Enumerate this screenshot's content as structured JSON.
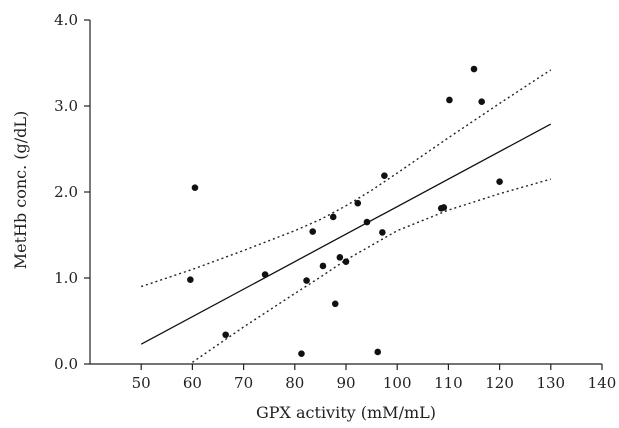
{
  "chart_data": {
    "type": "scatter",
    "xlabel": "GPX activity (mM/mL)",
    "ylabel": "MetHb conc. (g/dL)",
    "xlim": [
      40,
      140
    ],
    "ylim": [
      0.0,
      4.0
    ],
    "x_ticks": [
      50,
      60,
      70,
      80,
      90,
      100,
      110,
      120,
      130,
      140
    ],
    "x_tick_labels": [
      "50",
      "60",
      "70",
      "80",
      "90",
      "100",
      "110",
      "120",
      "130",
      "140"
    ],
    "y_ticks": [
      0.0,
      1.0,
      2.0,
      3.0,
      4.0
    ],
    "y_tick_labels": [
      "0.0",
      "1.0",
      "2.0",
      "3.0",
      "4.0"
    ],
    "grid": false,
    "points": [
      {
        "x": 59.6,
        "y": 0.98
      },
      {
        "x": 60.5,
        "y": 2.05
      },
      {
        "x": 66.5,
        "y": 0.34
      },
      {
        "x": 74.2,
        "y": 1.04
      },
      {
        "x": 81.3,
        "y": 0.12
      },
      {
        "x": 82.3,
        "y": 0.97
      },
      {
        "x": 83.5,
        "y": 1.54
      },
      {
        "x": 85.5,
        "y": 1.14
      },
      {
        "x": 87.5,
        "y": 1.71
      },
      {
        "x": 87.9,
        "y": 0.7
      },
      {
        "x": 88.8,
        "y": 1.24
      },
      {
        "x": 90.0,
        "y": 1.19
      },
      {
        "x": 92.3,
        "y": 1.87
      },
      {
        "x": 94.1,
        "y": 1.65
      },
      {
        "x": 96.2,
        "y": 0.14
      },
      {
        "x": 97.1,
        "y": 1.53
      },
      {
        "x": 97.5,
        "y": 2.19
      },
      {
        "x": 108.6,
        "y": 1.81
      },
      {
        "x": 109.1,
        "y": 1.82
      },
      {
        "x": 110.2,
        "y": 3.07
      },
      {
        "x": 115.0,
        "y": 3.43
      },
      {
        "x": 116.5,
        "y": 3.05
      },
      {
        "x": 120.0,
        "y": 2.12
      }
    ],
    "fit_line": {
      "x": [
        50,
        130
      ],
      "y": [
        0.23,
        2.79
      ]
    },
    "confidence_upper": {
      "x": [
        50,
        60,
        70,
        80,
        85,
        90,
        95,
        100,
        110,
        120,
        130
      ],
      "y": [
        0.9,
        1.1,
        1.32,
        1.55,
        1.68,
        1.84,
        2.02,
        2.22,
        2.63,
        3.03,
        3.42
      ]
    },
    "confidence_lower": {
      "x": [
        60,
        70,
        80,
        85,
        90,
        95,
        100,
        110,
        120,
        130
      ],
      "y": [
        0.02,
        0.43,
        0.82,
        1.01,
        1.21,
        1.38,
        1.55,
        1.79,
        1.98,
        2.15
      ]
    }
  }
}
